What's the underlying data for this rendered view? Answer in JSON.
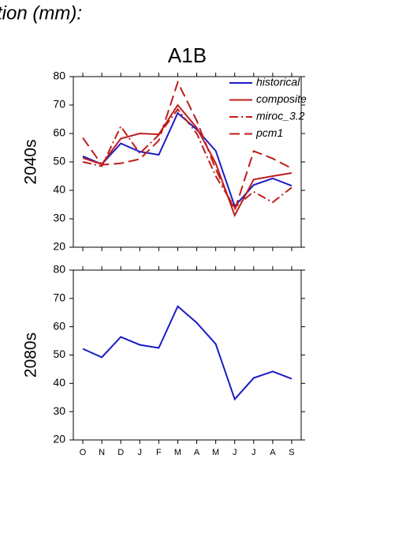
{
  "heading": "tion (mm):",
  "chart_data": [
    {
      "type": "line",
      "title": "A1B",
      "ylabel": "2040s",
      "ylim": [
        20,
        80
      ],
      "yticks": [
        20,
        30,
        40,
        50,
        60,
        70,
        80
      ],
      "legend": "upper-right",
      "series": [
        {
          "name": "historical",
          "color": "#1c1cc4",
          "dash": "solid",
          "values": [
            52,
            49.2,
            56.5,
            53.6,
            52.5,
            67.2,
            61.4,
            53.9,
            34.4,
            41.9,
            44.2,
            41.6
          ]
        },
        {
          "name": "composite",
          "color": "#c01c1c",
          "dash": "solid",
          "values": [
            51.4,
            49.2,
            58.2,
            60,
            59.7,
            70,
            62,
            49.5,
            31.2,
            43.8,
            45,
            46.1
          ]
        },
        {
          "name": "miroc_3.2",
          "color": "#c01c1c",
          "dash": "dashdot",
          "values": [
            50,
            48.5,
            62.5,
            53,
            59.5,
            68.5,
            60,
            45,
            34,
            39.5,
            35.8,
            41
          ]
        },
        {
          "name": "pcm1",
          "color": "#c01c1c",
          "dash": "dashed",
          "values": [
            58.5,
            49,
            49.5,
            51,
            57.5,
            78,
            64.5,
            47.5,
            33,
            53.8,
            51.2,
            47.7
          ]
        }
      ]
    },
    {
      "type": "line",
      "ylabel": "2080s",
      "categories": [
        "O",
        "N",
        "D",
        "J",
        "F",
        "M",
        "A",
        "M",
        "J",
        "J",
        "A",
        "S"
      ],
      "ylim": [
        20,
        80
      ],
      "yticks": [
        20,
        30,
        40,
        50,
        60,
        70,
        80
      ],
      "series": [
        {
          "color": "#1c1cc4",
          "dash": "solid",
          "values": [
            52.2,
            49.2,
            56.4,
            53.6,
            52.5,
            67.2,
            61.4,
            53.9,
            34.4,
            41.9,
            44.2,
            41.6
          ]
        }
      ]
    }
  ]
}
